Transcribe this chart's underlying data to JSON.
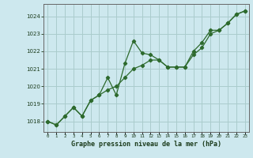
{
  "xlabel": "Graphe pression niveau de la mer (hPa)",
  "xlim": [
    -0.5,
    23.5
  ],
  "ylim": [
    1017.4,
    1024.7
  ],
  "yticks": [
    1018,
    1019,
    1020,
    1021,
    1022,
    1023,
    1024
  ],
  "xticks": [
    0,
    1,
    2,
    3,
    4,
    5,
    6,
    7,
    8,
    9,
    10,
    11,
    12,
    13,
    14,
    15,
    16,
    17,
    18,
    19,
    20,
    21,
    22,
    23
  ],
  "background_color": "#cde8ee",
  "grid_color": "#aacccc",
  "line_color": "#2d6a2d",
  "series1": [
    1018.0,
    1017.8,
    1018.3,
    1018.8,
    1018.3,
    1019.2,
    1019.5,
    1020.5,
    1019.5,
    1021.3,
    1022.6,
    1021.9,
    1021.8,
    1021.5,
    1021.1,
    1021.1,
    1021.1,
    1022.0,
    1022.5,
    1023.2,
    1023.2,
    1023.6,
    1024.1,
    1024.3
  ],
  "series2": [
    1018.0,
    1017.8,
    1018.3,
    1018.8,
    1018.3,
    1019.2,
    1019.5,
    1019.8,
    1020.0,
    1020.5,
    1021.0,
    1021.2,
    1021.5,
    1021.5,
    1021.1,
    1021.1,
    1021.1,
    1021.8,
    1022.2,
    1023.0,
    1023.2,
    1023.6,
    1024.1,
    1024.3
  ]
}
